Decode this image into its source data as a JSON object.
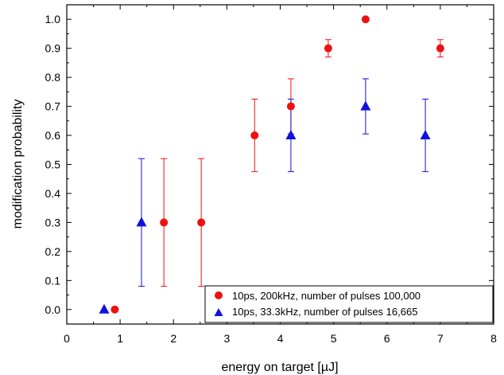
{
  "chart_data": {
    "type": "scatter",
    "xlabel": "energy on target [µJ]",
    "ylabel": "modification probability",
    "xlim": [
      0,
      8
    ],
    "ylim": [
      -0.05,
      1.05
    ],
    "grid": false,
    "legend_position": "bottom-right",
    "x_ticks": [
      0,
      1,
      2,
      3,
      4,
      5,
      6,
      7,
      8
    ],
    "x_tick_labels": [
      "0",
      "1",
      "2",
      "3",
      "4",
      "5",
      "6",
      "7",
      "8"
    ],
    "y_ticks": [
      0.0,
      0.1,
      0.2,
      0.3,
      0.4,
      0.5,
      0.6,
      0.7,
      0.8,
      0.9,
      1.0
    ],
    "y_tick_labels": [
      "0.0",
      "0.1",
      "0.2",
      "0.3",
      "0.4",
      "0.5",
      "0.6",
      "0.7",
      "0.8",
      "0.9",
      "1.0"
    ],
    "series": [
      {
        "name": "10ps, 200kHz, number of pulses 100,000",
        "marker": "circle",
        "color": "#ee1111",
        "points": [
          {
            "x": 0.9,
            "y": 0.0
          },
          {
            "x": 1.82,
            "y": 0.3,
            "err_low": 0.22,
            "err_high": 0.22
          },
          {
            "x": 2.52,
            "y": 0.3,
            "err_low": 0.22,
            "err_high": 0.22
          },
          {
            "x": 3.52,
            "y": 0.6,
            "err_low": 0.125,
            "err_high": 0.125
          },
          {
            "x": 4.2,
            "y": 0.7,
            "err_low": 0.095,
            "err_high": 0.095
          },
          {
            "x": 4.9,
            "y": 0.9,
            "err_low": 0.03,
            "err_high": 0.03
          },
          {
            "x": 5.6,
            "y": 1.0
          },
          {
            "x": 7.0,
            "y": 0.9,
            "err_low": 0.03,
            "err_high": 0.03
          }
        ]
      },
      {
        "name": "10ps, 33.3kHz, number of pulses 16,665",
        "marker": "triangle",
        "color": "#1111dd",
        "points": [
          {
            "x": 0.7,
            "y": 0.0
          },
          {
            "x": 1.4,
            "y": 0.3,
            "err_low": 0.22,
            "err_high": 0.22
          },
          {
            "x": 4.2,
            "y": 0.6,
            "err_low": 0.125,
            "err_high": 0.125
          },
          {
            "x": 5.6,
            "y": 0.7,
            "err_low": 0.095,
            "err_high": 0.095
          },
          {
            "x": 6.72,
            "y": 0.6,
            "err_low": 0.125,
            "err_high": 0.125
          }
        ]
      }
    ]
  }
}
